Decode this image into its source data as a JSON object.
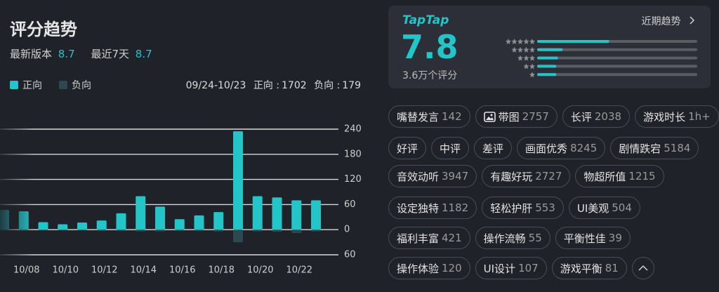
{
  "header": {
    "title": "评分趋势",
    "latest_label": "最新版本",
    "latest_value": 8.7,
    "recent_label": "最近7天",
    "recent_value": 8.7
  },
  "legend": {
    "positive": "正向",
    "negative": "负向"
  },
  "summary": {
    "range": "09/24-10/23",
    "positive_label": "正向 :",
    "positive_value": 1702,
    "negative_label": "负向 :",
    "negative_value": 179
  },
  "chart_data": {
    "type": "bar",
    "categories": [
      null,
      "10/08",
      null,
      "10/10",
      null,
      "10/12",
      null,
      "10/14",
      null,
      "10/16",
      null,
      "10/18",
      null,
      "10/20",
      null,
      "10/22",
      null
    ],
    "series": [
      {
        "name": "正向",
        "color": "#22c5c8",
        "values": [
          47,
          44,
          18,
          13,
          17,
          22,
          39,
          80,
          55,
          25,
          34,
          42,
          235,
          80,
          77,
          70,
          70
        ]
      },
      {
        "name": "负向",
        "color": "#2e4852",
        "values": [
          -3,
          -3,
          -2,
          -2,
          -2,
          -3,
          -3,
          -4,
          -4,
          -3,
          -3,
          -4,
          -30,
          -4,
          -5,
          -8,
          -4
        ]
      }
    ],
    "ylim": [
      -60,
      240
    ],
    "yticks": [
      {
        "value": -60,
        "label": "60"
      },
      0,
      60,
      120,
      180,
      240
    ],
    "grid": true
  },
  "rating": {
    "brand": "TapTap",
    "score": 7.8,
    "count_label": "3.6万个评分",
    "trend_link": "近期趋势",
    "distribution": [
      45,
      16,
      13,
      12,
      12
    ]
  },
  "tags": {
    "rows": [
      [
        {
          "name": "嘴替发言",
          "count": 142
        },
        {
          "name": "带图",
          "count": 2757
        },
        {
          "name": "长评",
          "count": 2038
        },
        {
          "name": "游戏时长",
          "count": "1h+"
        }
      ],
      [
        {
          "name": "好评"
        },
        {
          "name": "中评"
        },
        {
          "name": "差评"
        },
        {
          "name": "画面优秀",
          "count": 8245
        },
        {
          "name": "剧情跌宕",
          "count": 5184
        }
      ],
      [
        {
          "name": "音效动听",
          "count": 3947
        },
        {
          "name": "有趣好玩",
          "count": 2727
        },
        {
          "name": "物超所值",
          "count": 1215
        }
      ],
      [
        {
          "name": "设定独特",
          "count": 1182
        },
        {
          "name": "轻松护肝",
          "count": 553
        },
        {
          "name": "UI美观",
          "count": 504
        }
      ],
      [
        {
          "name": "福利丰富",
          "count": 421
        },
        {
          "name": "操作流畅",
          "count": 55
        },
        {
          "name": "平衡性佳",
          "count": 39
        }
      ],
      [
        {
          "name": "操作体验",
          "count": 120
        },
        {
          "name": "UI设计",
          "count": 107
        },
        {
          "name": "游戏平衡",
          "count": 81
        }
      ]
    ]
  }
}
